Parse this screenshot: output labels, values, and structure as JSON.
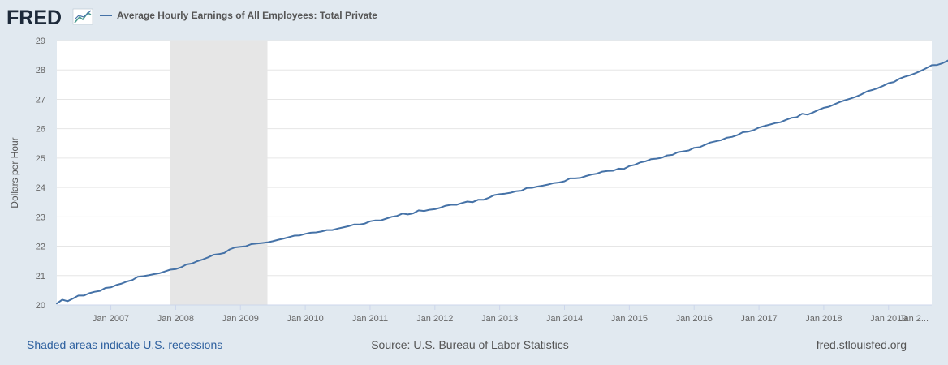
{
  "header": {
    "logo_text": "FRED",
    "logo_icon": "line-chart-icon"
  },
  "footer": {
    "recession_note": "Shaded areas indicate U.S. recessions",
    "source": "Source: U.S. Bureau of Labor Statistics",
    "site": "fred.stlouisfed.org"
  },
  "colors": {
    "background": "#e1e9f0",
    "plot_background": "#ffffff",
    "series_line": "#4572a7",
    "recession_shade": "#e6e6e6",
    "grid": "#e6e6e6",
    "link": "#2c5f9e"
  },
  "chart_data": {
    "type": "line",
    "title": "",
    "xlabel": "",
    "ylabel": "Dollars per Hour",
    "ylim": [
      20,
      29
    ],
    "yticks": [
      "20",
      "21",
      "22",
      "23",
      "24",
      "25",
      "26",
      "27",
      "28",
      "29"
    ],
    "xlim": [
      "2006-03",
      "2019-09"
    ],
    "xticks": [
      "Jan 2007",
      "Jan 2008",
      "Jan 2009",
      "Jan 2010",
      "Jan 2011",
      "Jan 2012",
      "Jan 2013",
      "Jan 2014",
      "Jan 2015",
      "Jan 2016",
      "Jan 2017",
      "Jan 2018",
      "Jan 2019",
      "Jan 2..."
    ],
    "grid": true,
    "legend_position": "top-left",
    "recessions": [
      {
        "start": "2007-12",
        "end": "2009-06"
      }
    ],
    "series": [
      {
        "name": "Average Hourly Earnings of All Employees: Total Private",
        "color": "#4572a7",
        "points": [
          [
            "2006-03",
            20.05
          ],
          [
            "2006-04",
            20.18
          ],
          [
            "2006-05",
            20.13
          ],
          [
            "2006-06",
            20.22
          ],
          [
            "2006-07",
            20.32
          ],
          [
            "2006-08",
            20.32
          ],
          [
            "2006-09",
            20.4
          ],
          [
            "2006-10",
            20.45
          ],
          [
            "2006-11",
            20.48
          ],
          [
            "2006-12",
            20.58
          ],
          [
            "2007-01",
            20.6
          ],
          [
            "2007-02",
            20.68
          ],
          [
            "2007-03",
            20.73
          ],
          [
            "2007-04",
            20.8
          ],
          [
            "2007-05",
            20.85
          ],
          [
            "2007-06",
            20.96
          ],
          [
            "2007-07",
            20.98
          ],
          [
            "2007-08",
            21.01
          ],
          [
            "2007-09",
            21.05
          ],
          [
            "2007-10",
            21.08
          ],
          [
            "2007-11",
            21.14
          ],
          [
            "2007-12",
            21.2
          ],
          [
            "2008-01",
            21.22
          ],
          [
            "2008-02",
            21.28
          ],
          [
            "2008-03",
            21.38
          ],
          [
            "2008-04",
            21.41
          ],
          [
            "2008-05",
            21.49
          ],
          [
            "2008-06",
            21.55
          ],
          [
            "2008-07",
            21.62
          ],
          [
            "2008-08",
            21.71
          ],
          [
            "2008-09",
            21.73
          ],
          [
            "2008-10",
            21.77
          ],
          [
            "2008-11",
            21.89
          ],
          [
            "2008-12",
            21.96
          ],
          [
            "2009-01",
            21.98
          ],
          [
            "2009-02",
            22.0
          ],
          [
            "2009-03",
            22.07
          ],
          [
            "2009-04",
            22.09
          ],
          [
            "2009-05",
            22.11
          ],
          [
            "2009-06",
            22.13
          ],
          [
            "2009-07",
            22.17
          ],
          [
            "2009-08",
            22.22
          ],
          [
            "2009-09",
            22.26
          ],
          [
            "2009-10",
            22.31
          ],
          [
            "2009-11",
            22.36
          ],
          [
            "2009-12",
            22.37
          ],
          [
            "2010-01",
            22.42
          ],
          [
            "2010-02",
            22.46
          ],
          [
            "2010-03",
            22.47
          ],
          [
            "2010-04",
            22.5
          ],
          [
            "2010-05",
            22.55
          ],
          [
            "2010-06",
            22.55
          ],
          [
            "2010-07",
            22.6
          ],
          [
            "2010-08",
            22.64
          ],
          [
            "2010-09",
            22.68
          ],
          [
            "2010-10",
            22.74
          ],
          [
            "2010-11",
            22.74
          ],
          [
            "2010-12",
            22.77
          ],
          [
            "2011-01",
            22.85
          ],
          [
            "2011-02",
            22.88
          ],
          [
            "2011-03",
            22.88
          ],
          [
            "2011-04",
            22.94
          ],
          [
            "2011-05",
            23.0
          ],
          [
            "2011-06",
            23.03
          ],
          [
            "2011-07",
            23.11
          ],
          [
            "2011-08",
            23.08
          ],
          [
            "2011-09",
            23.12
          ],
          [
            "2011-10",
            23.22
          ],
          [
            "2011-11",
            23.2
          ],
          [
            "2011-12",
            23.24
          ],
          [
            "2012-01",
            23.26
          ],
          [
            "2012-02",
            23.31
          ],
          [
            "2012-03",
            23.38
          ],
          [
            "2012-04",
            23.41
          ],
          [
            "2012-05",
            23.41
          ],
          [
            "2012-06",
            23.47
          ],
          [
            "2012-07",
            23.52
          ],
          [
            "2012-08",
            23.5
          ],
          [
            "2012-09",
            23.58
          ],
          [
            "2012-10",
            23.58
          ],
          [
            "2012-11",
            23.65
          ],
          [
            "2012-12",
            23.74
          ],
          [
            "2013-01",
            23.77
          ],
          [
            "2013-02",
            23.79
          ],
          [
            "2013-03",
            23.82
          ],
          [
            "2013-04",
            23.87
          ],
          [
            "2013-05",
            23.89
          ],
          [
            "2013-06",
            23.98
          ],
          [
            "2013-07",
            23.99
          ],
          [
            "2013-08",
            24.03
          ],
          [
            "2013-09",
            24.06
          ],
          [
            "2013-10",
            24.1
          ],
          [
            "2013-11",
            24.15
          ],
          [
            "2013-12",
            24.17
          ],
          [
            "2014-01",
            24.21
          ],
          [
            "2014-02",
            24.31
          ],
          [
            "2014-03",
            24.31
          ],
          [
            "2014-04",
            24.33
          ],
          [
            "2014-05",
            24.39
          ],
          [
            "2014-06",
            24.44
          ],
          [
            "2014-07",
            24.47
          ],
          [
            "2014-08",
            24.54
          ],
          [
            "2014-09",
            24.56
          ],
          [
            "2014-10",
            24.57
          ],
          [
            "2014-11",
            24.64
          ],
          [
            "2014-12",
            24.63
          ],
          [
            "2015-01",
            24.73
          ],
          [
            "2015-02",
            24.77
          ],
          [
            "2015-03",
            24.85
          ],
          [
            "2015-04",
            24.89
          ],
          [
            "2015-05",
            24.96
          ],
          [
            "2015-06",
            24.98
          ],
          [
            "2015-07",
            25.01
          ],
          [
            "2015-08",
            25.09
          ],
          [
            "2015-09",
            25.11
          ],
          [
            "2015-10",
            25.2
          ],
          [
            "2015-11",
            25.23
          ],
          [
            "2015-12",
            25.26
          ],
          [
            "2016-01",
            25.35
          ],
          [
            "2016-02",
            25.37
          ],
          [
            "2016-03",
            25.45
          ],
          [
            "2016-04",
            25.53
          ],
          [
            "2016-05",
            25.57
          ],
          [
            "2016-06",
            25.61
          ],
          [
            "2016-07",
            25.69
          ],
          [
            "2016-08",
            25.72
          ],
          [
            "2016-09",
            25.78
          ],
          [
            "2016-10",
            25.88
          ],
          [
            "2016-11",
            25.9
          ],
          [
            "2016-12",
            25.95
          ],
          [
            "2017-01",
            26.04
          ],
          [
            "2017-02",
            26.09
          ],
          [
            "2017-03",
            26.14
          ],
          [
            "2017-04",
            26.19
          ],
          [
            "2017-05",
            26.22
          ],
          [
            "2017-06",
            26.3
          ],
          [
            "2017-07",
            26.37
          ],
          [
            "2017-08",
            26.39
          ],
          [
            "2017-09",
            26.51
          ],
          [
            "2017-10",
            26.48
          ],
          [
            "2017-11",
            26.55
          ],
          [
            "2017-12",
            26.64
          ],
          [
            "2018-01",
            26.71
          ],
          [
            "2018-02",
            26.75
          ],
          [
            "2018-03",
            26.83
          ],
          [
            "2018-04",
            26.91
          ],
          [
            "2018-05",
            26.97
          ],
          [
            "2018-06",
            27.03
          ],
          [
            "2018-07",
            27.09
          ],
          [
            "2018-08",
            27.17
          ],
          [
            "2018-09",
            27.27
          ],
          [
            "2018-10",
            27.32
          ],
          [
            "2018-11",
            27.38
          ],
          [
            "2018-12",
            27.46
          ],
          [
            "2019-01",
            27.55
          ],
          [
            "2019-02",
            27.59
          ],
          [
            "2019-03",
            27.7
          ],
          [
            "2019-04",
            27.77
          ],
          [
            "2019-05",
            27.82
          ],
          [
            "2019-06",
            27.89
          ],
          [
            "2019-07",
            27.97
          ],
          [
            "2019-08",
            28.06
          ],
          [
            "2019-09",
            28.16
          ],
          [
            "2019-10",
            28.17
          ],
          [
            "2019-11",
            28.23
          ],
          [
            "2019-12",
            28.32
          ],
          [
            "2020-01",
            28.36
          ],
          [
            "2020-02",
            28.43
          ]
        ]
      }
    ]
  }
}
